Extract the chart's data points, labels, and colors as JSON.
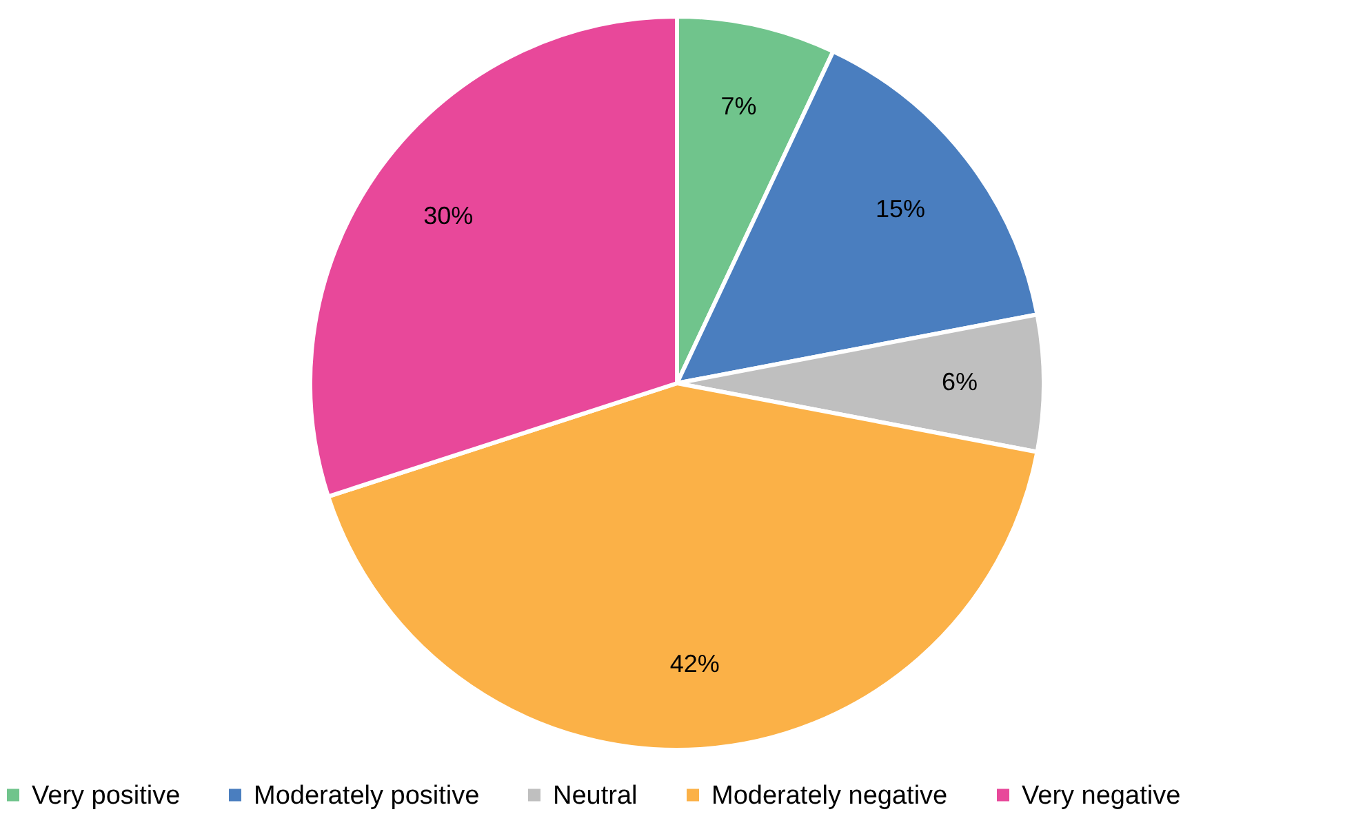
{
  "chart_data": {
    "type": "pie",
    "categories": [
      "Very positive",
      "Moderately positive",
      "Neutral",
      "Moderately negative",
      "Very negative"
    ],
    "values": [
      7,
      15,
      6,
      42,
      30
    ],
    "value_labels": [
      "7%",
      "15%",
      "6%",
      "42%",
      "30%"
    ],
    "colors": [
      "#70c48c",
      "#4a7ebf",
      "#bfbfbf",
      "#fbb147",
      "#e8489a"
    ],
    "legend": "bottom"
  }
}
